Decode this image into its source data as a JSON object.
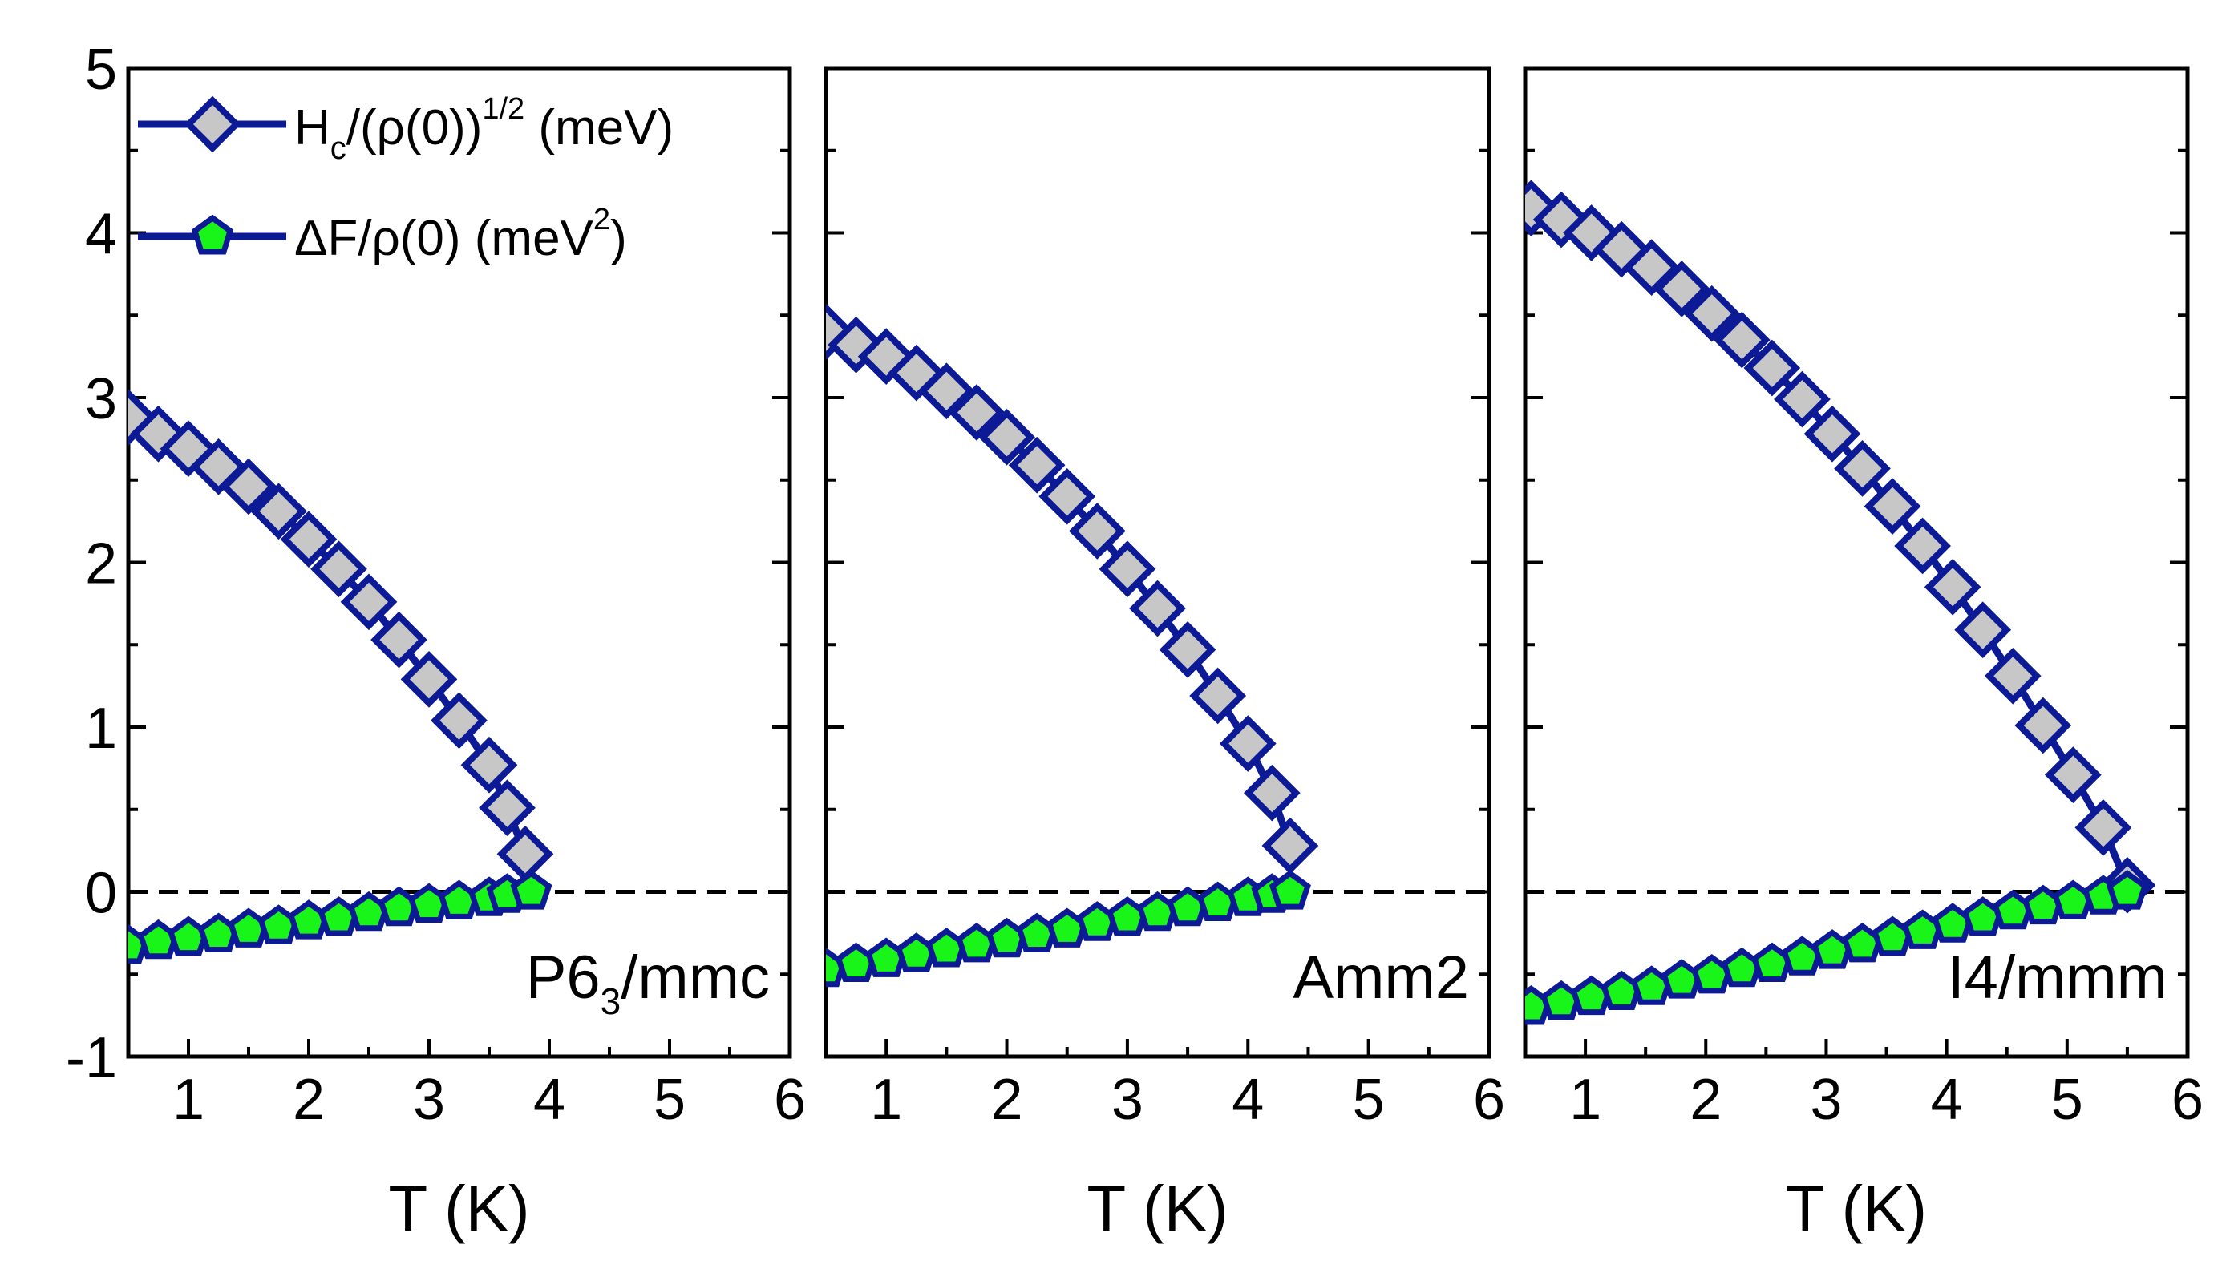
{
  "colors": {
    "line": "#0d1a96",
    "diamond_fill": "#c7c7c7",
    "pentagon_fill": "#19f519",
    "zero_line": "#000000",
    "frame": "#000000"
  },
  "legend": {
    "hc": {
      "main": "H",
      "sub": "c",
      "mid": "/(ρ(0))",
      "sup": "1/2",
      "tail": " (meV)"
    },
    "df": {
      "main": "ΔF/ρ(0) (meV",
      "sup": "2",
      "tail": ")"
    }
  },
  "chart_data": [
    {
      "type": "line",
      "label": "P6₃/mmc",
      "label_parts": {
        "main": "P6",
        "sub": "3",
        "tail": "/mmc"
      },
      "xlabel": "T (K)",
      "xlim": [
        0.5,
        6
      ],
      "ylim": [
        -1,
        5
      ],
      "x_ticks": [
        "1",
        "2",
        "3",
        "4",
        "5",
        "6"
      ],
      "y_ticks": [
        "-1",
        "0",
        "1",
        "2",
        "3",
        "4",
        "5"
      ],
      "reference_line_y": 0,
      "series": [
        {
          "name": "Hc/(ρ(0))^1/2 (meV)",
          "marker": "diamond",
          "x": [
            0.5,
            0.75,
            1.0,
            1.25,
            1.5,
            1.75,
            2.0,
            2.25,
            2.5,
            2.75,
            3.0,
            3.25,
            3.5,
            3.65,
            3.8
          ],
          "y": [
            2.88,
            2.78,
            2.69,
            2.58,
            2.46,
            2.31,
            2.14,
            1.96,
            1.76,
            1.53,
            1.29,
            1.04,
            0.77,
            0.51,
            0.23
          ]
        },
        {
          "name": "ΔF/ρ(0) (meV^2)",
          "marker": "pentagon",
          "x": [
            0.5,
            0.75,
            1.0,
            1.25,
            1.5,
            1.75,
            2.0,
            2.25,
            2.5,
            2.75,
            3.0,
            3.25,
            3.5,
            3.65,
            3.85
          ],
          "y": [
            -0.33,
            -0.3,
            -0.28,
            -0.26,
            -0.23,
            -0.21,
            -0.18,
            -0.16,
            -0.13,
            -0.1,
            -0.08,
            -0.06,
            -0.04,
            -0.02,
            0.0
          ]
        }
      ]
    },
    {
      "type": "line",
      "label": "Amm2",
      "label_parts": {
        "main": "Amm2",
        "sub": "",
        "tail": ""
      },
      "xlabel": "T (K)",
      "xlim": [
        0.5,
        6
      ],
      "ylim": [
        -1,
        5
      ],
      "x_ticks": [
        "1",
        "2",
        "3",
        "4",
        "5",
        "6"
      ],
      "y_ticks": [
        "-1",
        "0",
        "1",
        "2",
        "3",
        "4",
        "5"
      ],
      "reference_line_y": 0,
      "series": [
        {
          "name": "Hc/(ρ(0))^1/2 (meV)",
          "marker": "diamond",
          "x": [
            0.5,
            0.75,
            1.0,
            1.25,
            1.5,
            1.75,
            2.0,
            2.25,
            2.5,
            2.75,
            3.0,
            3.25,
            3.5,
            3.75,
            4.0,
            4.2,
            4.35
          ],
          "y": [
            3.4,
            3.32,
            3.25,
            3.15,
            3.04,
            2.91,
            2.76,
            2.59,
            2.4,
            2.19,
            1.96,
            1.72,
            1.47,
            1.19,
            0.9,
            0.6,
            0.28
          ]
        },
        {
          "name": "ΔF/ρ(0) (meV^2)",
          "marker": "pentagon",
          "x": [
            0.5,
            0.75,
            1.0,
            1.25,
            1.5,
            1.75,
            2.0,
            2.25,
            2.5,
            2.75,
            3.0,
            3.25,
            3.5,
            3.75,
            4.0,
            4.2,
            4.35
          ],
          "y": [
            -0.47,
            -0.44,
            -0.41,
            -0.38,
            -0.35,
            -0.32,
            -0.29,
            -0.26,
            -0.23,
            -0.19,
            -0.16,
            -0.13,
            -0.1,
            -0.07,
            -0.04,
            -0.02,
            0.0
          ]
        }
      ]
    },
    {
      "type": "line",
      "label": "I4/mmm",
      "label_parts": {
        "main": "I4/mmm",
        "sub": "",
        "tail": ""
      },
      "xlabel": "T (K)",
      "xlim": [
        0.5,
        6
      ],
      "ylim": [
        -1,
        5
      ],
      "x_ticks": [
        "1",
        "2",
        "3",
        "4",
        "5",
        "6"
      ],
      "y_ticks": [
        "-1",
        "0",
        "1",
        "2",
        "3",
        "4",
        "5"
      ],
      "reference_line_y": 0,
      "series": [
        {
          "name": "Hc/(ρ(0))^1/2 (meV)",
          "marker": "diamond",
          "x": [
            0.55,
            0.8,
            1.05,
            1.3,
            1.55,
            1.8,
            2.05,
            2.3,
            2.55,
            2.8,
            3.05,
            3.3,
            3.55,
            3.8,
            4.05,
            4.3,
            4.55,
            4.8,
            5.05,
            5.3,
            5.5
          ],
          "y": [
            4.15,
            4.08,
            4.0,
            3.9,
            3.79,
            3.66,
            3.51,
            3.35,
            3.18,
            2.99,
            2.78,
            2.57,
            2.34,
            2.1,
            1.85,
            1.59,
            1.31,
            1.01,
            0.71,
            0.39,
            0.04
          ]
        },
        {
          "name": "ΔF/ρ(0) (meV^2)",
          "marker": "pentagon",
          "x": [
            0.55,
            0.8,
            1.05,
            1.3,
            1.55,
            1.8,
            2.05,
            2.3,
            2.55,
            2.8,
            3.05,
            3.3,
            3.55,
            3.8,
            4.05,
            4.3,
            4.55,
            4.8,
            5.05,
            5.3,
            5.5
          ],
          "y": [
            -0.7,
            -0.67,
            -0.64,
            -0.61,
            -0.58,
            -0.54,
            -0.51,
            -0.47,
            -0.44,
            -0.4,
            -0.36,
            -0.32,
            -0.28,
            -0.24,
            -0.2,
            -0.16,
            -0.12,
            -0.09,
            -0.06,
            -0.03,
            0.0
          ]
        }
      ]
    }
  ]
}
